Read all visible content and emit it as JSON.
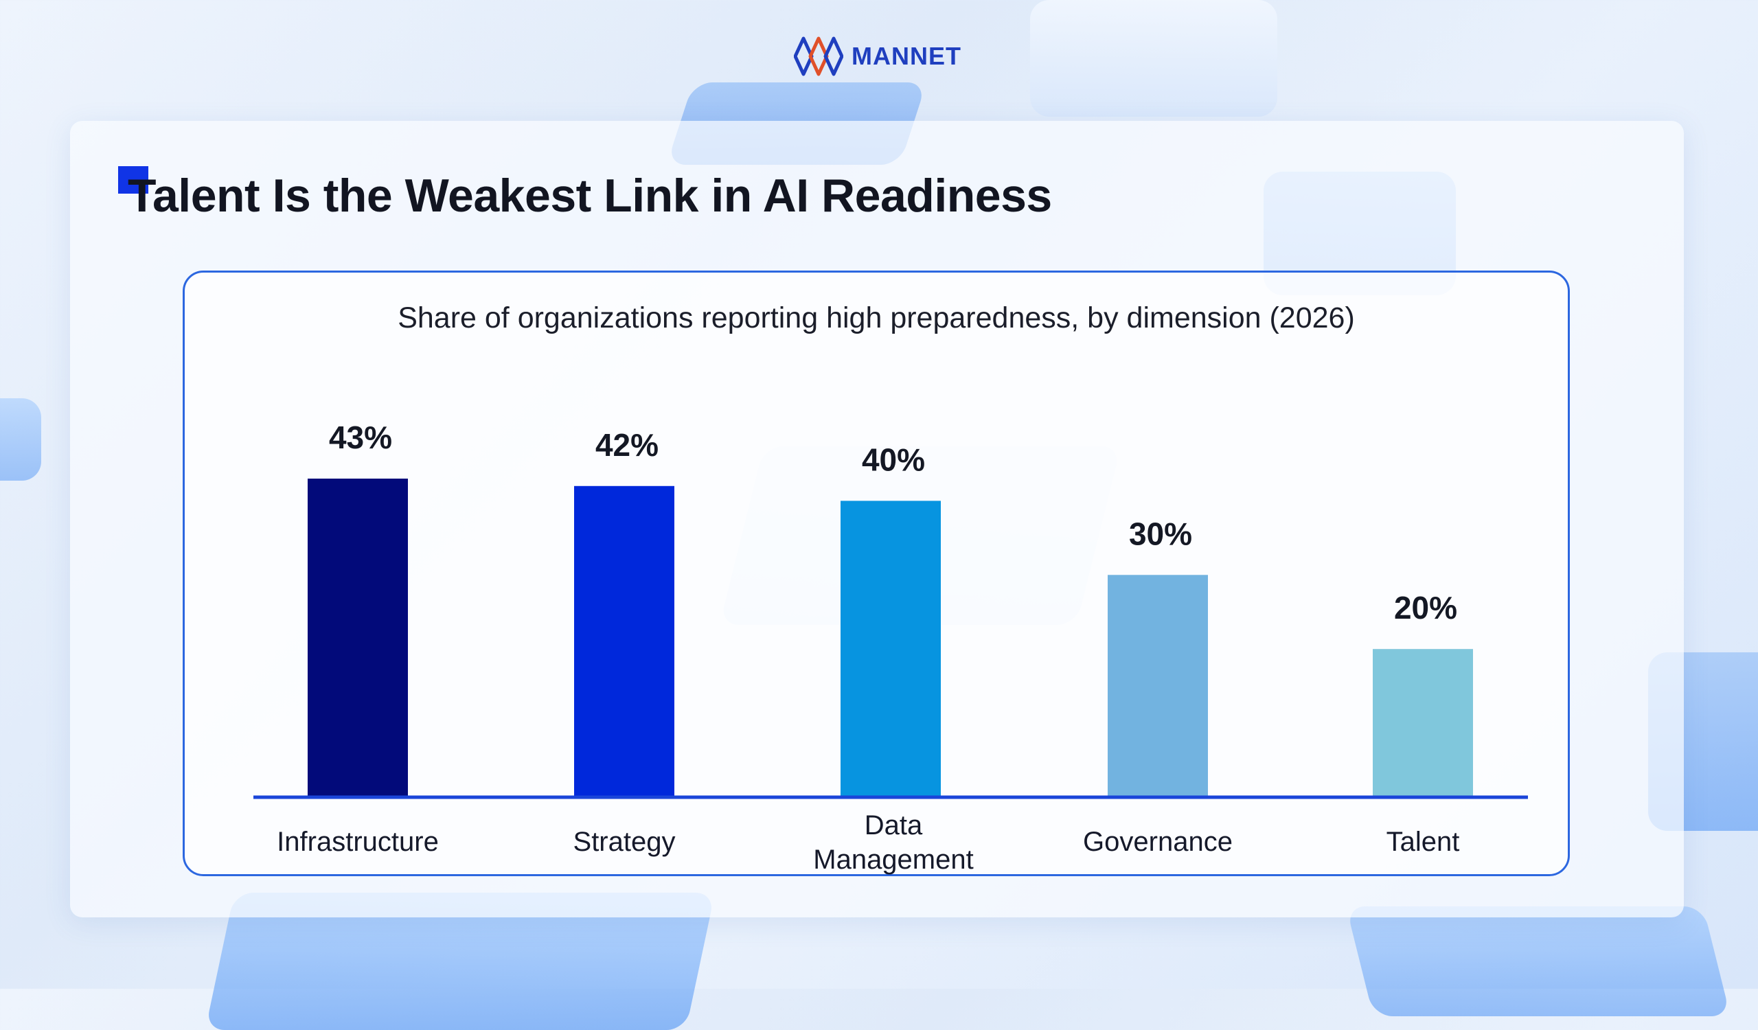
{
  "brand": {
    "name": "MANNET",
    "colors": {
      "primary": "#1f3fbf",
      "accent": "#e0502a"
    }
  },
  "slide": {
    "title": "Talent Is the Weakest Link in AI Readiness",
    "accent_color": "#1034e6"
  },
  "chart_data": {
    "type": "bar",
    "title": "Share of organizations reporting high preparedness, by dimension (2026)",
    "categories": [
      "Infrastructure",
      "Strategy",
      "Data Management",
      "Governance",
      "Talent"
    ],
    "category_lines": [
      [
        "Infrastructure"
      ],
      [
        "Strategy"
      ],
      [
        "Data",
        "Management"
      ],
      [
        "Governance"
      ],
      [
        "Talent"
      ]
    ],
    "values": [
      43,
      42,
      40,
      30,
      20
    ],
    "value_labels": [
      "43%",
      "42%",
      "40%",
      "30%",
      "20%"
    ],
    "colors": [
      "#020a7a",
      "#0028db",
      "#0794e0",
      "#72b3e0",
      "#80c7dc"
    ],
    "unit": "%",
    "ylim": [
      0,
      43
    ],
    "grid": false,
    "legend": "none",
    "axis_color": "#1a45d9"
  }
}
